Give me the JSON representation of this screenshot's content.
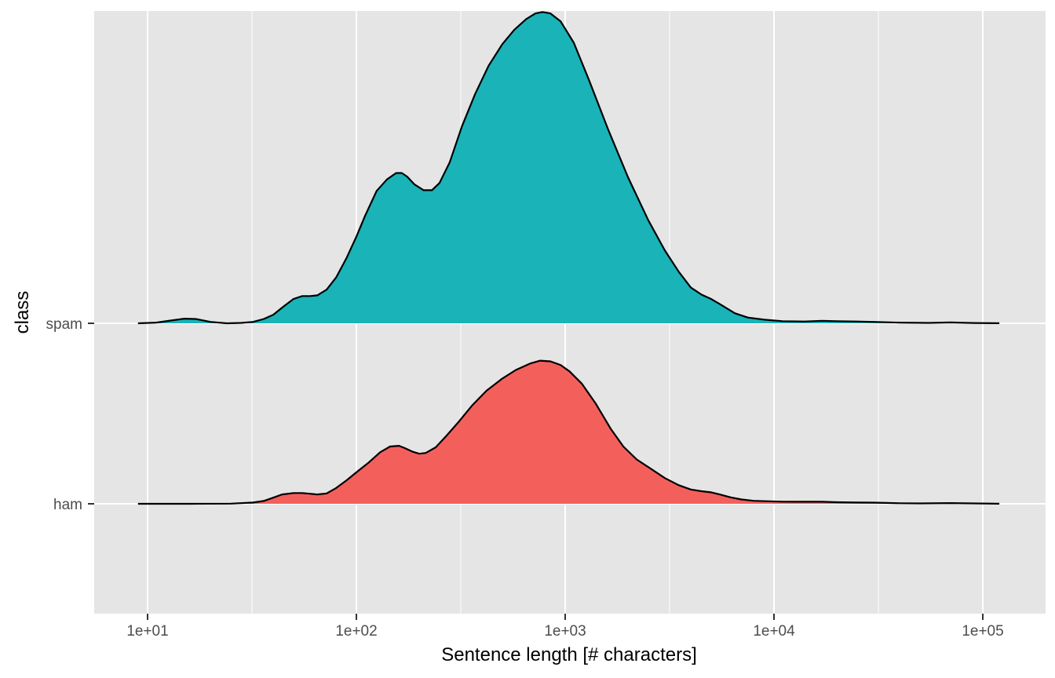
{
  "chart_data": {
    "type": "area",
    "subtype": "ridgeline-density",
    "title": "",
    "xlabel": "Sentence length [# characters]",
    "ylabel": "class",
    "x_scale": "log10",
    "xlim": [
      8.9,
      120000
    ],
    "x_ticks": [
      10,
      100,
      1000,
      10000,
      100000
    ],
    "x_tick_labels": [
      "1e+01",
      "1e+02",
      "1e+03",
      "1e+04",
      "1e+05"
    ],
    "categories": [
      "ham",
      "spam"
    ],
    "grid": true,
    "legend": "none",
    "colors": {
      "panel": "#e5e5e5",
      "grid": "#ffffff",
      "outline": "#000000",
      "ham": "#f3605c",
      "spam": "#19b3b8",
      "tick": "#4d4d4d"
    },
    "series": [
      {
        "category": "ham",
        "x": [
          9,
          16,
          25,
          32,
          36,
          40,
          44,
          50,
          55,
          60,
          65,
          72,
          80,
          90,
          100,
          115,
          130,
          145,
          160,
          170,
          185,
          200,
          215,
          240,
          270,
          310,
          360,
          420,
          500,
          580,
          680,
          760,
          850,
          950,
          1050,
          1200,
          1400,
          1650,
          1900,
          2200,
          2600,
          3000,
          3500,
          4000,
          4500,
          5000,
          5500,
          6200,
          7000,
          8000,
          9500,
          11000,
          14000,
          17000,
          20000,
          25000,
          30000,
          40000,
          50000,
          70000,
          90000,
          120000
        ],
        "density": [
          0.0,
          0.0,
          0.002,
          0.017,
          0.04,
          0.085,
          0.13,
          0.15,
          0.15,
          0.14,
          0.13,
          0.145,
          0.22,
          0.33,
          0.44,
          0.58,
          0.72,
          0.8,
          0.81,
          0.78,
          0.73,
          0.7,
          0.71,
          0.79,
          0.95,
          1.15,
          1.38,
          1.58,
          1.75,
          1.87,
          1.96,
          2.0,
          1.99,
          1.94,
          1.85,
          1.68,
          1.4,
          1.05,
          0.8,
          0.62,
          0.48,
          0.36,
          0.26,
          0.2,
          0.175,
          0.16,
          0.13,
          0.09,
          0.06,
          0.042,
          0.035,
          0.03,
          0.028,
          0.028,
          0.022,
          0.018,
          0.016,
          0.008,
          0.006,
          0.01,
          0.005,
          0.001
        ]
      },
      {
        "category": "spam",
        "x": [
          9,
          11,
          13,
          15,
          17,
          20,
          24,
          28,
          32,
          36,
          40,
          45,
          50,
          55,
          60,
          65,
          72,
          80,
          90,
          100,
          110,
          125,
          140,
          155,
          165,
          175,
          190,
          210,
          230,
          250,
          280,
          320,
          370,
          430,
          500,
          570,
          650,
          720,
          780,
          850,
          950,
          1100,
          1300,
          1600,
          2000,
          2500,
          3000,
          3500,
          4000,
          4500,
          5000,
          5500,
          6500,
          7500,
          9000,
          11000,
          14000,
          17000,
          20000,
          25000,
          30000,
          40000,
          55000,
          70000,
          90000,
          120000
        ],
        "density": [
          0.0,
          0.01,
          0.04,
          0.065,
          0.06,
          0.02,
          0.0,
          0.005,
          0.02,
          0.06,
          0.12,
          0.24,
          0.34,
          0.38,
          0.38,
          0.39,
          0.47,
          0.64,
          0.92,
          1.21,
          1.5,
          1.85,
          2.01,
          2.1,
          2.1,
          2.05,
          1.94,
          1.86,
          1.86,
          1.96,
          2.25,
          2.75,
          3.2,
          3.6,
          3.9,
          4.1,
          4.25,
          4.33,
          4.35,
          4.33,
          4.22,
          3.92,
          3.4,
          2.72,
          2.04,
          1.44,
          1.02,
          0.72,
          0.5,
          0.4,
          0.34,
          0.27,
          0.14,
          0.08,
          0.05,
          0.03,
          0.025,
          0.035,
          0.03,
          0.025,
          0.02,
          0.01,
          0.005,
          0.012,
          0.004,
          0.001
        ]
      }
    ]
  }
}
